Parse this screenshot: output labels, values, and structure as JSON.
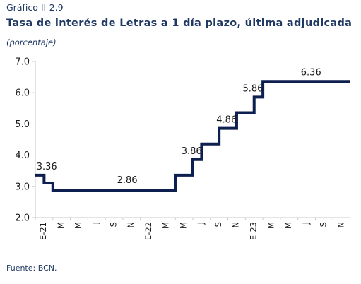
{
  "header": {
    "figure_label": "Gráfico II-2.9",
    "title": "Tasa de interés de Letras a 1 día plazo, última adjudicada",
    "subtitle": "(porcentaje)"
  },
  "footer": {
    "source": "Fuente: BCN."
  },
  "chart_data": {
    "type": "line",
    "step": true,
    "title": "Tasa de interés de Letras a 1 día plazo, última adjudicada",
    "subtitle": "(porcentaje)",
    "xlabel": "",
    "ylabel": "",
    "ylim": [
      2.0,
      7.0
    ],
    "yticks": [
      "2.0",
      "3.0",
      "4.0",
      "5.0",
      "6.0",
      "7.0"
    ],
    "xticks": [
      "E-21",
      "M",
      "M",
      "J",
      "S",
      "N",
      "E-22",
      "M",
      "M",
      "J",
      "S",
      "N",
      "E-23",
      "M",
      "M",
      "J",
      "S",
      "N"
    ],
    "grid": false,
    "legend": "none",
    "line_color": "#0d1f4f",
    "series": [
      {
        "x": [
          "2021-01",
          "2021-02",
          "2021-03",
          "2021-04",
          "2021-05",
          "2021-06",
          "2021-07",
          "2021-08",
          "2021-09",
          "2021-10",
          "2021-11",
          "2021-12",
          "2022-01",
          "2022-02",
          "2022-03",
          "2022-04",
          "2022-05",
          "2022-06",
          "2022-07",
          "2022-08",
          "2022-09",
          "2022-10",
          "2022-11",
          "2022-12",
          "2023-01",
          "2023-02",
          "2023-03",
          "2023-04",
          "2023-05",
          "2023-06",
          "2023-07",
          "2023-08",
          "2023-09",
          "2023-10",
          "2023-11",
          "2023-12"
        ],
        "values": [
          3.36,
          3.11,
          2.86,
          2.86,
          2.86,
          2.86,
          2.86,
          2.86,
          2.86,
          2.86,
          2.86,
          2.86,
          2.86,
          2.86,
          2.86,
          2.86,
          3.36,
          3.36,
          3.86,
          4.36,
          4.36,
          4.86,
          4.86,
          5.36,
          5.36,
          5.86,
          6.36,
          6.36,
          6.36,
          6.36,
          6.36,
          6.36,
          6.36,
          6.36,
          6.36,
          6.36
        ]
      }
    ],
    "annotations": [
      {
        "x": "2021-01",
        "y": 3.36,
        "text": "3.36"
      },
      {
        "x": "2021-11",
        "y": 2.86,
        "text": "2.86"
      },
      {
        "x": "2022-07",
        "y": 3.86,
        "text": "3.86"
      },
      {
        "x": "2022-11",
        "y": 4.86,
        "text": "4.86"
      },
      {
        "x": "2023-02",
        "y": 5.86,
        "text": "5.86"
      },
      {
        "x": "2023-08",
        "y": 6.36,
        "text": "6.36"
      }
    ]
  }
}
